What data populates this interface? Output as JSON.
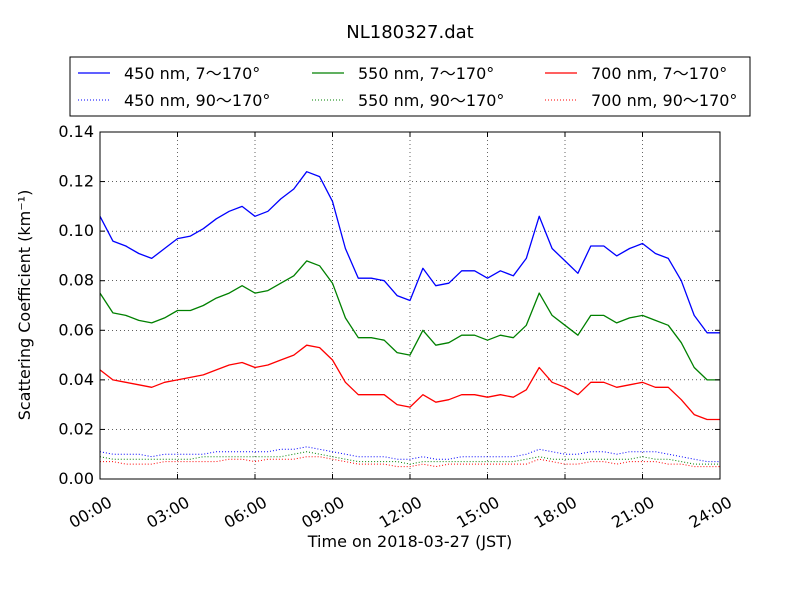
{
  "chart_data": {
    "type": "line",
    "title": "NL180327.dat",
    "xlabel": "Time on 2018-03-27 (JST)",
    "ylabel": "Scattering Coefficient (km⁻¹)",
    "xlim": [
      0,
      24
    ],
    "ylim": [
      0,
      0.14
    ],
    "xticks": [
      0,
      3,
      6,
      9,
      12,
      15,
      18,
      21,
      24
    ],
    "xtick_labels": [
      "00:00",
      "03:00",
      "06:00",
      "09:00",
      "12:00",
      "15:00",
      "18:00",
      "21:00",
      "24:00"
    ],
    "yticks": [
      0,
      0.02,
      0.04,
      0.06,
      0.08,
      0.1,
      0.12,
      0.14
    ],
    "ytick_labels": [
      "0.00",
      "0.02",
      "0.04",
      "0.06",
      "0.08",
      "0.10",
      "0.12",
      "0.14"
    ],
    "grid": true,
    "legend": {
      "position": "top",
      "columns": 3
    },
    "x": [
      0,
      0.5,
      1,
      1.5,
      2,
      2.5,
      3,
      3.5,
      4,
      4.5,
      5,
      5.5,
      6,
      6.5,
      7,
      7.5,
      8,
      8.5,
      9,
      9.5,
      10,
      10.5,
      11,
      11.5,
      12,
      12.5,
      13,
      13.5,
      14,
      14.5,
      15,
      15.5,
      16,
      16.5,
      17,
      17.5,
      18,
      18.5,
      19,
      19.5,
      20,
      20.5,
      21,
      21.5,
      22,
      22.5,
      23,
      23.5,
      24
    ],
    "series": [
      {
        "name": "450 nm, 7～170°",
        "color": "#0000ff",
        "style": "solid",
        "values": [
          0.106,
          0.096,
          0.094,
          0.091,
          0.089,
          0.093,
          0.097,
          0.098,
          0.101,
          0.105,
          0.108,
          0.11,
          0.106,
          0.108,
          0.113,
          0.117,
          0.124,
          0.122,
          0.112,
          0.093,
          0.081,
          0.081,
          0.08,
          0.074,
          0.072,
          0.085,
          0.078,
          0.079,
          0.084,
          0.084,
          0.081,
          0.084,
          0.082,
          0.089,
          0.106,
          0.093,
          0.088,
          0.083,
          0.094,
          0.094,
          0.09,
          0.093,
          0.095,
          0.091,
          0.089,
          0.08,
          0.066,
          0.059,
          0.059
        ]
      },
      {
        "name": "450 nm, 90～170°",
        "color": "#0000ff",
        "style": "dotted",
        "values": [
          0.011,
          0.01,
          0.01,
          0.01,
          0.009,
          0.01,
          0.01,
          0.01,
          0.01,
          0.011,
          0.011,
          0.011,
          0.011,
          0.011,
          0.012,
          0.012,
          0.013,
          0.012,
          0.011,
          0.01,
          0.009,
          0.009,
          0.009,
          0.008,
          0.008,
          0.009,
          0.008,
          0.008,
          0.009,
          0.009,
          0.009,
          0.009,
          0.009,
          0.01,
          0.012,
          0.011,
          0.01,
          0.01,
          0.011,
          0.011,
          0.01,
          0.011,
          0.011,
          0.011,
          0.01,
          0.009,
          0.008,
          0.007,
          0.007
        ]
      },
      {
        "name": "550 nm, 7～170°",
        "color": "#008000",
        "style": "solid",
        "values": [
          0.075,
          0.067,
          0.066,
          0.064,
          0.063,
          0.065,
          0.068,
          0.068,
          0.07,
          0.073,
          0.075,
          0.078,
          0.075,
          0.076,
          0.079,
          0.082,
          0.088,
          0.086,
          0.079,
          0.065,
          0.057,
          0.057,
          0.056,
          0.051,
          0.05,
          0.06,
          0.054,
          0.055,
          0.058,
          0.058,
          0.056,
          0.058,
          0.057,
          0.062,
          0.075,
          0.066,
          0.062,
          0.058,
          0.066,
          0.066,
          0.063,
          0.065,
          0.066,
          0.064,
          0.062,
          0.055,
          0.045,
          0.04,
          0.04
        ]
      },
      {
        "name": "550 nm, 90～170°",
        "color": "#008000",
        "style": "dotted",
        "values": [
          0.009,
          0.008,
          0.008,
          0.008,
          0.008,
          0.008,
          0.008,
          0.008,
          0.009,
          0.009,
          0.009,
          0.009,
          0.009,
          0.009,
          0.009,
          0.01,
          0.011,
          0.01,
          0.009,
          0.008,
          0.007,
          0.007,
          0.007,
          0.007,
          0.006,
          0.007,
          0.007,
          0.007,
          0.007,
          0.007,
          0.007,
          0.007,
          0.007,
          0.008,
          0.009,
          0.008,
          0.008,
          0.008,
          0.008,
          0.008,
          0.008,
          0.008,
          0.009,
          0.008,
          0.008,
          0.007,
          0.006,
          0.006,
          0.006
        ]
      },
      {
        "name": "700 nm, 7～170°",
        "color": "#ff0000",
        "style": "solid",
        "values": [
          0.044,
          0.04,
          0.039,
          0.038,
          0.037,
          0.039,
          0.04,
          0.041,
          0.042,
          0.044,
          0.046,
          0.047,
          0.045,
          0.046,
          0.048,
          0.05,
          0.054,
          0.053,
          0.048,
          0.039,
          0.034,
          0.034,
          0.034,
          0.03,
          0.029,
          0.034,
          0.031,
          0.032,
          0.034,
          0.034,
          0.033,
          0.034,
          0.033,
          0.036,
          0.045,
          0.039,
          0.037,
          0.034,
          0.039,
          0.039,
          0.037,
          0.038,
          0.039,
          0.037,
          0.037,
          0.032,
          0.026,
          0.024,
          0.024
        ]
      },
      {
        "name": "700 nm, 90～170°",
        "color": "#ff0000",
        "style": "dotted",
        "values": [
          0.007,
          0.007,
          0.006,
          0.006,
          0.006,
          0.007,
          0.007,
          0.007,
          0.007,
          0.007,
          0.008,
          0.008,
          0.007,
          0.008,
          0.008,
          0.008,
          0.009,
          0.009,
          0.008,
          0.007,
          0.006,
          0.006,
          0.006,
          0.005,
          0.005,
          0.006,
          0.005,
          0.006,
          0.006,
          0.006,
          0.006,
          0.006,
          0.006,
          0.006,
          0.008,
          0.007,
          0.006,
          0.006,
          0.007,
          0.007,
          0.006,
          0.007,
          0.007,
          0.007,
          0.006,
          0.006,
          0.005,
          0.005,
          0.005
        ]
      }
    ]
  }
}
